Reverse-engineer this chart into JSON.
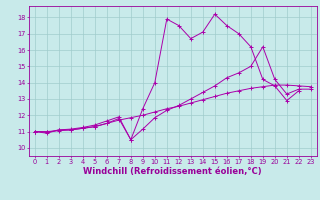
{
  "xlabel": "Windchill (Refroidissement éolien,°C)",
  "xlim": [
    -0.5,
    23.5
  ],
  "ylim": [
    9.5,
    18.7
  ],
  "yticks": [
    10,
    11,
    12,
    13,
    14,
    15,
    16,
    17,
    18
  ],
  "xticks": [
    0,
    1,
    2,
    3,
    4,
    5,
    6,
    7,
    8,
    9,
    10,
    11,
    12,
    13,
    14,
    15,
    16,
    17,
    18,
    19,
    20,
    21,
    22,
    23
  ],
  "bg_color": "#c8eaea",
  "grid_color": "#a0cccc",
  "line_color": "#aa00aa",
  "line1_x": [
    0,
    1,
    2,
    3,
    4,
    5,
    6,
    7,
    8,
    9,
    10,
    11,
    12,
    13,
    14,
    15,
    16,
    17,
    18,
    19,
    20,
    21,
    22
  ],
  "line1_y": [
    11.0,
    10.9,
    11.1,
    11.1,
    11.2,
    11.3,
    11.5,
    11.8,
    10.5,
    12.4,
    14.0,
    17.9,
    17.5,
    16.7,
    17.1,
    18.2,
    17.5,
    17.0,
    16.2,
    14.2,
    13.8,
    12.9,
    13.5
  ],
  "line2_x": [
    0,
    1,
    2,
    3,
    4,
    5,
    6,
    7,
    8,
    9,
    10,
    11,
    12,
    13,
    14,
    15,
    16,
    17,
    18,
    19,
    20,
    21,
    22,
    23
  ],
  "line2_y": [
    11.0,
    10.95,
    11.1,
    11.15,
    11.25,
    11.4,
    11.65,
    11.9,
    10.5,
    11.15,
    11.85,
    12.3,
    12.6,
    13.0,
    13.4,
    13.8,
    14.3,
    14.6,
    15.0,
    16.2,
    14.2,
    13.3,
    13.6,
    13.6
  ],
  "line3_x": [
    0,
    1,
    2,
    3,
    4,
    5,
    6,
    7,
    8,
    9,
    10,
    11,
    12,
    13,
    14,
    15,
    16,
    17,
    18,
    19,
    20,
    21,
    22,
    23
  ],
  "line3_y": [
    11.0,
    11.0,
    11.05,
    11.1,
    11.2,
    11.3,
    11.5,
    11.7,
    11.85,
    12.0,
    12.2,
    12.4,
    12.55,
    12.75,
    12.95,
    13.15,
    13.35,
    13.5,
    13.65,
    13.75,
    13.85,
    13.85,
    13.8,
    13.75
  ],
  "font_color": "#990099",
  "tick_fontsize": 4.8,
  "label_fontsize": 6.0
}
